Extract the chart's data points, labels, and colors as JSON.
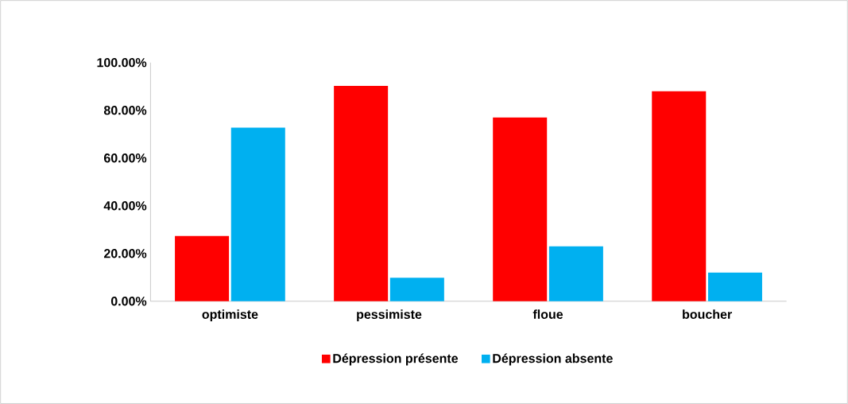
{
  "chart_data": {
    "type": "bar",
    "categories": [
      "optimiste",
      "pessimiste",
      "floue",
      "boucher"
    ],
    "series": [
      {
        "name": "Dépression présente",
        "color": "#ff0000",
        "values": [
          27.3,
          90.2,
          77,
          88
        ]
      },
      {
        "name": "Dépression absente",
        "color": "#00b0f0",
        "values": [
          72.7,
          9.8,
          23,
          12
        ]
      }
    ],
    "ylim": [
      0,
      100
    ],
    "yticks": [
      {
        "value": 0,
        "label": "0.00%"
      },
      {
        "value": 20,
        "label": "20.00%"
      },
      {
        "value": 40,
        "label": "40.00%"
      },
      {
        "value": 60,
        "label": "60.00%"
      },
      {
        "value": 80,
        "label": "80.00%"
      },
      {
        "value": 100,
        "label": "100.00%"
      }
    ],
    "legend": "bottom"
  }
}
